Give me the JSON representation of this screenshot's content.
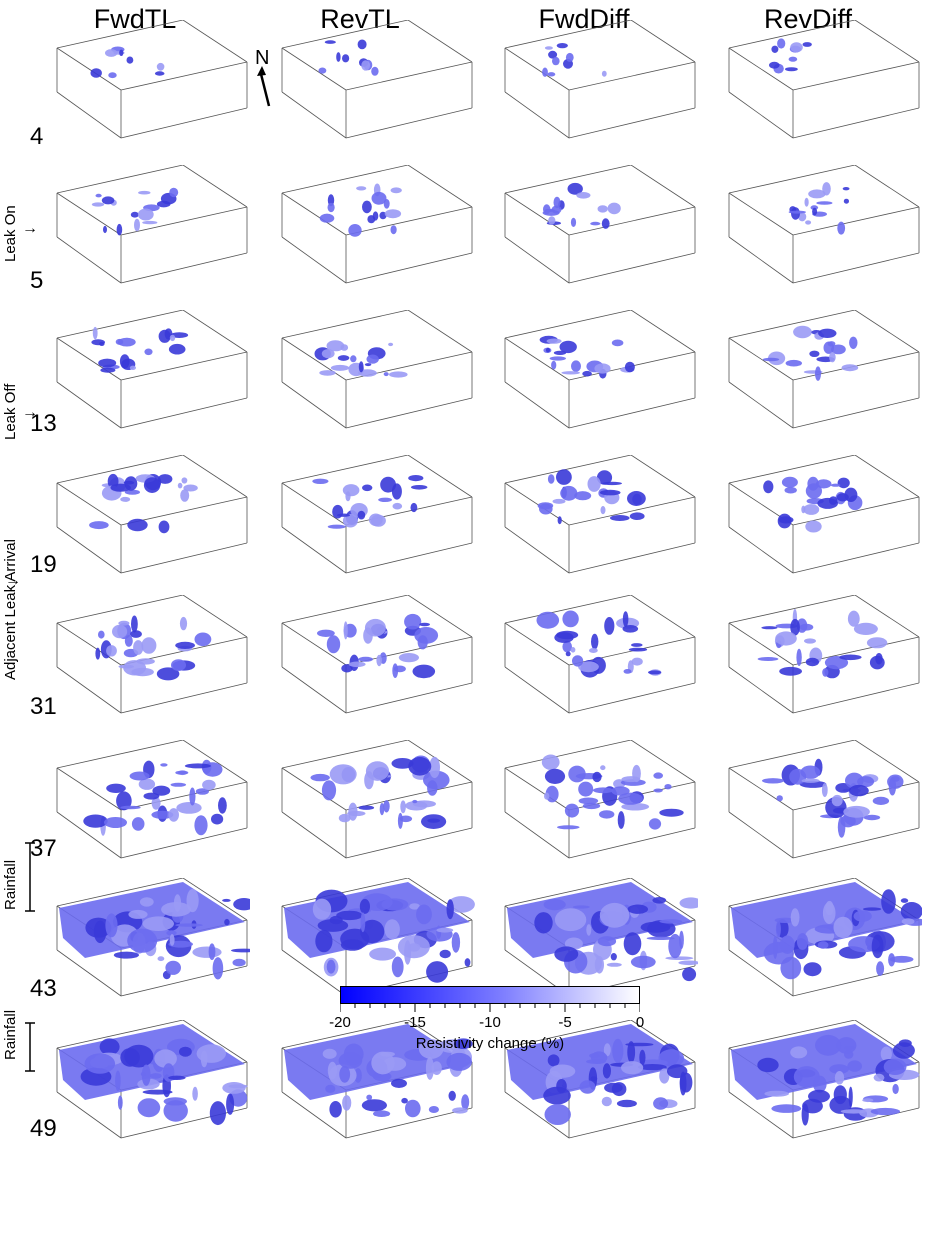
{
  "columns": [
    "FwdTL",
    "RevTL",
    "FwdDiff",
    "RevDiff"
  ],
  "rows": [
    {
      "num": "4",
      "level": 0.1,
      "side": "",
      "arrow": ""
    },
    {
      "num": "5",
      "level": 0.3,
      "side": "Leak On",
      "arrow": "→"
    },
    {
      "num": "13",
      "level": 0.35,
      "side": "Leak Off",
      "arrow": "→"
    },
    {
      "num": "19",
      "level": 0.45,
      "side": "",
      "arrow": "→"
    },
    {
      "num": "31",
      "level": 0.6,
      "side": "Adjacent Leak Arrival",
      "arrow": ""
    },
    {
      "num": "37",
      "level": 0.8,
      "side": "",
      "arrow": ""
    },
    {
      "num": "43",
      "level": 1.0,
      "side": "Rainfall",
      "arrow": ""
    },
    {
      "num": "49",
      "level": 0.95,
      "side": "Rainfall",
      "arrow": ""
    }
  ],
  "north_label": "N",
  "colorbar": {
    "ticks": [
      "-20",
      "-15",
      "-10",
      "-5",
      "0"
    ],
    "title": "Resistivity change (%)",
    "color_min": "#0000ff",
    "color_max": "#ffffff"
  },
  "colors": {
    "iso": "#6b6bf0",
    "iso_dark": "#3a3ad8",
    "iso_light": "#9a9af5"
  }
}
